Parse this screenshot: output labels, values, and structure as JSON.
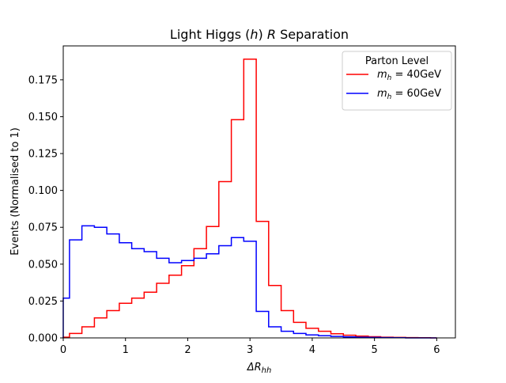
{
  "chart_data": {
    "type": "line",
    "drawstyle": "steps",
    "title": {
      "pre": "Light Higgs (",
      "var": "h",
      "mid": ") ",
      "var2": "R",
      "post": " Separation"
    },
    "xlabel": {
      "main": "ΔR",
      "sub": "hh"
    },
    "ylabel": "Events (Normalised to 1)",
    "xlim": [
      0,
      6.3
    ],
    "ylim": [
      0,
      0.198
    ],
    "xticks": [
      0,
      1,
      2,
      3,
      4,
      5,
      6
    ],
    "xtick_labels": [
      "0",
      "1",
      "2",
      "3",
      "4",
      "5",
      "6"
    ],
    "yticks": [
      0.0,
      0.025,
      0.05,
      0.075,
      0.1,
      0.125,
      0.15,
      0.175
    ],
    "ytick_labels": [
      "0.000",
      "0.025",
      "0.050",
      "0.075",
      "0.100",
      "0.125",
      "0.150",
      "0.175"
    ],
    "grid": false,
    "legend": {
      "title": "Parton Level",
      "placement": "top-right"
    },
    "bin_edges": [
      0,
      0.1,
      0.3,
      0.5,
      0.7,
      0.9,
      1.1,
      1.3,
      1.5,
      1.7,
      1.9,
      2.1,
      2.3,
      2.5,
      2.7,
      2.9,
      3.1,
      3.3,
      3.5,
      3.7,
      3.9,
      4.1,
      4.3,
      4.5,
      4.7,
      4.9,
      5.1,
      5.3,
      5.5,
      5.7,
      5.9,
      6.0
    ],
    "series": [
      {
        "name": {
          "sym": "m",
          "sub": "h",
          "val": " = 40GeV"
        },
        "color": "#ff0000",
        "values": [
          0.0005,
          0.003,
          0.0075,
          0.0135,
          0.0185,
          0.0235,
          0.027,
          0.031,
          0.037,
          0.0425,
          0.049,
          0.0605,
          0.0755,
          0.106,
          0.148,
          0.189,
          0.079,
          0.0355,
          0.0185,
          0.0105,
          0.0065,
          0.0045,
          0.0028,
          0.0018,
          0.0012,
          0.0008,
          0.0005,
          0.0003,
          0.0002,
          0.0001,
          0.0
        ]
      },
      {
        "name": {
          "sym": "m",
          "sub": "h",
          "val": " = 60GeV"
        },
        "color": "#0000ff",
        "values": [
          0.027,
          0.0665,
          0.076,
          0.075,
          0.0705,
          0.0645,
          0.0605,
          0.0585,
          0.054,
          0.051,
          0.0525,
          0.054,
          0.057,
          0.0625,
          0.068,
          0.0655,
          0.018,
          0.0075,
          0.0045,
          0.003,
          0.002,
          0.0015,
          0.001,
          0.0007,
          0.0005,
          0.0003,
          0.0002,
          0.0001,
          0.0,
          0.0,
          0.0
        ]
      }
    ]
  }
}
